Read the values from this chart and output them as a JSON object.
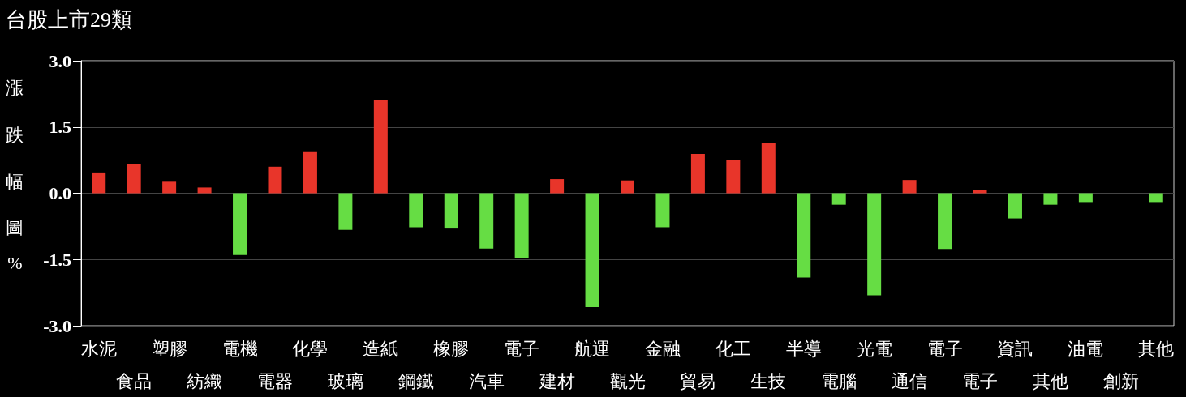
{
  "chart_data": {
    "type": "bar",
    "title": "台股上市29類",
    "ylabel": "漲跌幅圖%",
    "categories": [
      "水泥",
      "食品",
      "塑膠",
      "紡織",
      "電機",
      "電器",
      "化學",
      "玻璃",
      "造紙",
      "鋼鐵",
      "橡膠",
      "汽車",
      "電子",
      "建材",
      "航運",
      "觀光",
      "金融",
      "貿易",
      "化工",
      "生技",
      "半導",
      "電腦",
      "光電",
      "通信",
      "電子",
      "電子",
      "資訊",
      "其他",
      "油電",
      "創新",
      "其他"
    ],
    "values": [
      0.47,
      0.66,
      0.26,
      0.13,
      -1.4,
      0.6,
      0.95,
      -0.83,
      2.11,
      -0.77,
      -0.8,
      -1.25,
      -1.46,
      0.32,
      -2.58,
      0.29,
      -0.77,
      0.89,
      0.76,
      1.13,
      -1.91,
      -0.26,
      -2.31,
      0.3,
      -1.26,
      0.07,
      -0.57,
      -0.26,
      -0.2,
      0,
      -0.2
    ],
    "colors": [
      "#e8352a",
      "#e8352a",
      "#e8352a",
      "#e8352a",
      "#66dd44",
      "#e8352a",
      "#e8352a",
      "#66dd44",
      "#e8352a",
      "#66dd44",
      "#66dd44",
      "#66dd44",
      "#66dd44",
      "#e8352a",
      "#66dd44",
      "#e8352a",
      "#66dd44",
      "#e8352a",
      "#e8352a",
      "#e8352a",
      "#66dd44",
      "#66dd44",
      "#66dd44",
      "#e8352a",
      "#66dd44",
      "#e8352a",
      "#66dd44",
      "#66dd44",
      "#66dd44",
      "#66dd44",
      "#66dd44"
    ],
    "ylim": [
      -3,
      3
    ],
    "yticks": [
      {
        "value": -3,
        "label": "-3.0"
      },
      {
        "value": -1.5,
        "label": "-1.5"
      },
      {
        "value": 0,
        "label": "0.0"
      },
      {
        "value": 1.5,
        "label": "1.5"
      },
      {
        "value": 3,
        "label": "3.0"
      }
    ],
    "grid": "y"
  }
}
